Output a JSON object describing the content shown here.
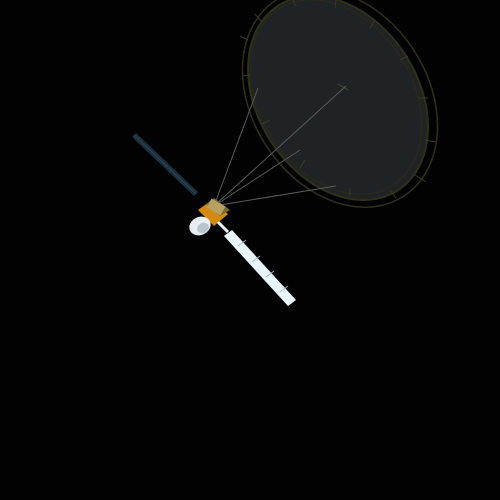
{
  "scene": {
    "subject": "spacecraft-with-deployed-reflector-antenna",
    "colors": {
      "background": "#020203",
      "reflector_fill": "#1f2326",
      "reflector_rim": "#2f3018",
      "rib": "#3a3a24",
      "tether": "#5a5a5a",
      "solar_panel_light": "#e8f4ff",
      "solar_panel_dark": "#1c2f3c",
      "body_foil": "#d48a10",
      "body_white": "#e8eef4"
    },
    "icons": [
      "satellite-icon",
      "reflector-dish-icon",
      "solar-array-icon"
    ]
  }
}
